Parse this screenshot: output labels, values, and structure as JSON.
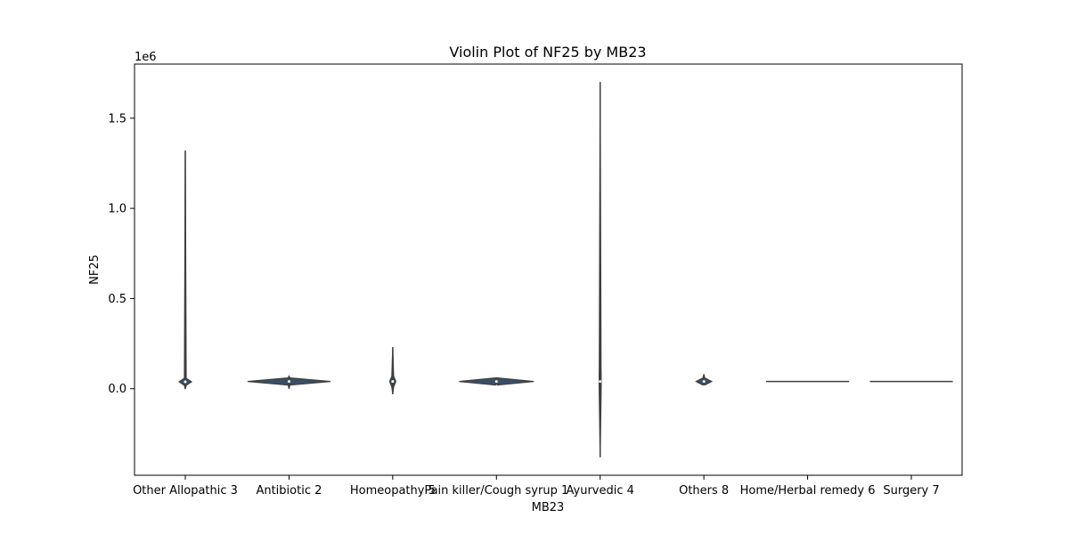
{
  "chart_data": {
    "type": "violin",
    "title": "Violin Plot of NF25 by MB23",
    "xlabel": "MB23",
    "ylabel": "NF25",
    "y_offset_text": "1e6",
    "y_scale": 1000000,
    "ylim": [
      -480000,
      1800000
    ],
    "yticks": [
      0,
      500000,
      1000000,
      1500000
    ],
    "ytick_labels": [
      "0.0",
      "0.5",
      "1.0",
      "1.5"
    ],
    "grid": false,
    "legend": "none",
    "violin_color": "#3a4f66",
    "categories": [
      {
        "label": "Other Allopathic 3",
        "min": -2000,
        "max": 1320000,
        "median": 38000,
        "q1": 34000,
        "q3": 42000,
        "width": 0.12
      },
      {
        "label": "Antibiotic 2",
        "min": 0,
        "max": 70000,
        "median": 40000,
        "q1": 38000,
        "q3": 42000,
        "width": 0.8
      },
      {
        "label": "Homeopathy 5",
        "min": -30000,
        "max": 230000,
        "median": 40000,
        "q1": 25000,
        "q3": 55000,
        "width": 0.06
      },
      {
        "label": "Pain killer/Cough syrup 1",
        "min": 30000,
        "max": 60000,
        "median": 40000,
        "q1": 38000,
        "q3": 42000,
        "width": 0.72
      },
      {
        "label": "Ayurvedic 4",
        "min": -380000,
        "max": 1700000,
        "median": 40000,
        "q1": 0,
        "q3": 80000,
        "width": 0.02
      },
      {
        "label": "Others 8",
        "min": 25000,
        "max": 80000,
        "median": 40000,
        "q1": 36000,
        "q3": 44000,
        "width": 0.15
      },
      {
        "label": "Home/Herbal remedy 6",
        "min": 40000,
        "max": 40000,
        "median": 40000,
        "q1": 40000,
        "q3": 40000,
        "width": 0.8
      },
      {
        "label": "Surgery 7",
        "min": 40000,
        "max": 40000,
        "median": 40000,
        "q1": 40000,
        "q3": 40000,
        "width": 0.8
      }
    ]
  }
}
